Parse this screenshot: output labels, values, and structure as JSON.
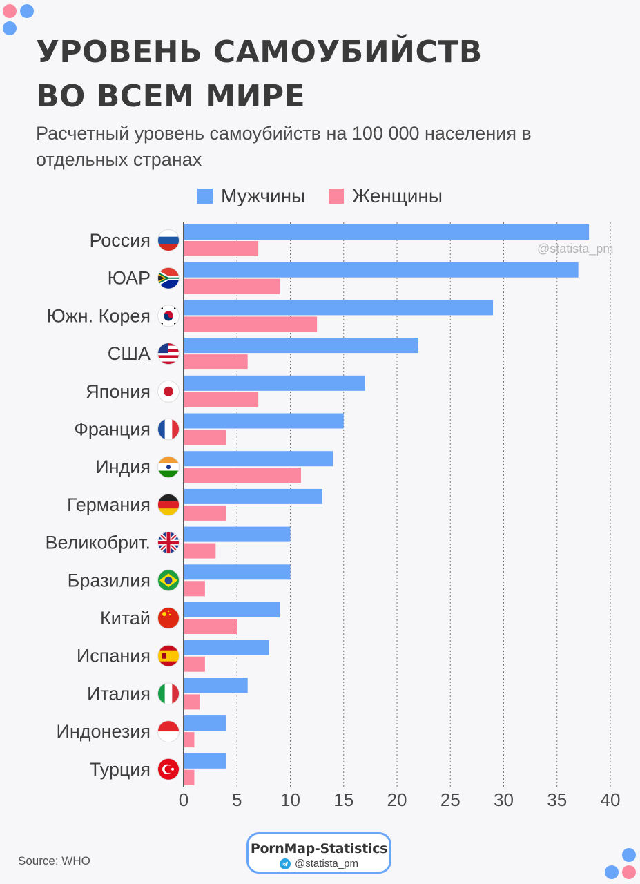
{
  "header": {
    "title": "УРОВЕНЬ САМОУБИЙСТВ ВО ВСЕМ МИРЕ",
    "subtitle": "Расчетный уровень самоубийств на 100 000 населения в отдельных странах"
  },
  "watermark": "@statista_pm",
  "footer": {
    "source": "Source: WHO",
    "badge_title": "PornMap-Statistics",
    "badge_handle": "@statista_pm"
  },
  "colors": {
    "men": "#69a5f9",
    "women": "#fc889f",
    "accent": "#69a5f9"
  },
  "chart_data": {
    "type": "bar",
    "orientation": "horizontal",
    "categories": [
      "Россия",
      "ЮАР",
      "Южн. Корея",
      "США",
      "Япония",
      "Франция",
      "Индия",
      "Германия",
      "Великобрит.",
      "Бразилия",
      "Китай",
      "Испания",
      "Италия",
      "Индонезия",
      "Турция"
    ],
    "flag_icons": [
      "russia-flag-icon",
      "south-africa-flag-icon",
      "south-korea-flag-icon",
      "usa-flag-icon",
      "japan-flag-icon",
      "france-flag-icon",
      "india-flag-icon",
      "germany-flag-icon",
      "uk-flag-icon",
      "brazil-flag-icon",
      "china-flag-icon",
      "spain-flag-icon",
      "italy-flag-icon",
      "indonesia-flag-icon",
      "turkey-flag-icon"
    ],
    "series": [
      {
        "name": "Мужчины",
        "values": [
          38,
          37,
          29,
          22,
          17,
          15,
          14,
          13,
          10,
          10,
          9,
          8,
          6,
          4,
          4
        ]
      },
      {
        "name": "Женщины",
        "values": [
          7,
          9,
          12.5,
          6,
          7,
          4,
          11,
          4,
          3,
          2,
          5,
          2,
          1.5,
          1,
          1
        ]
      }
    ],
    "xticks": [
      0,
      5,
      10,
      15,
      20,
      25,
      30,
      35,
      40
    ],
    "xlim": [
      0,
      40
    ],
    "grid": "vertical dashed",
    "legend": "top-center"
  }
}
